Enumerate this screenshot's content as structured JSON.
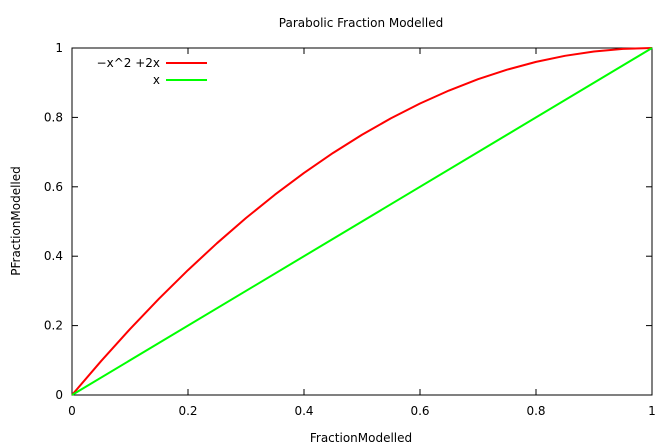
{
  "chart_data": {
    "type": "line",
    "title": "Parabolic Fraction Modelled",
    "xlabel": "FractionModelled",
    "ylabel": "PFractionModelled",
    "xlim": [
      0,
      1
    ],
    "ylim": [
      0,
      1
    ],
    "x_ticks": [
      "0",
      "0.2",
      "0.4",
      "0.6",
      "0.8",
      "1"
    ],
    "y_ticks": [
      "0",
      "0.2",
      "0.4",
      "0.6",
      "0.8",
      "1"
    ],
    "grid": false,
    "legend_position": "top-left",
    "series": [
      {
        "name": "−x^2 +2x",
        "color": "#ff0000",
        "x": [
          0,
          0.05,
          0.1,
          0.15,
          0.2,
          0.25,
          0.3,
          0.35,
          0.4,
          0.45,
          0.5,
          0.55,
          0.6,
          0.65,
          0.7,
          0.75,
          0.8,
          0.85,
          0.9,
          0.95,
          1
        ],
        "y": [
          0,
          0.0975,
          0.19,
          0.2775,
          0.36,
          0.4375,
          0.51,
          0.5775,
          0.64,
          0.6975,
          0.75,
          0.7975,
          0.84,
          0.8775,
          0.91,
          0.9375,
          0.96,
          0.9775,
          0.99,
          0.9975,
          1
        ]
      },
      {
        "name": "x",
        "color": "#00ff00",
        "x": [
          0,
          1
        ],
        "y": [
          0,
          1
        ]
      }
    ]
  }
}
